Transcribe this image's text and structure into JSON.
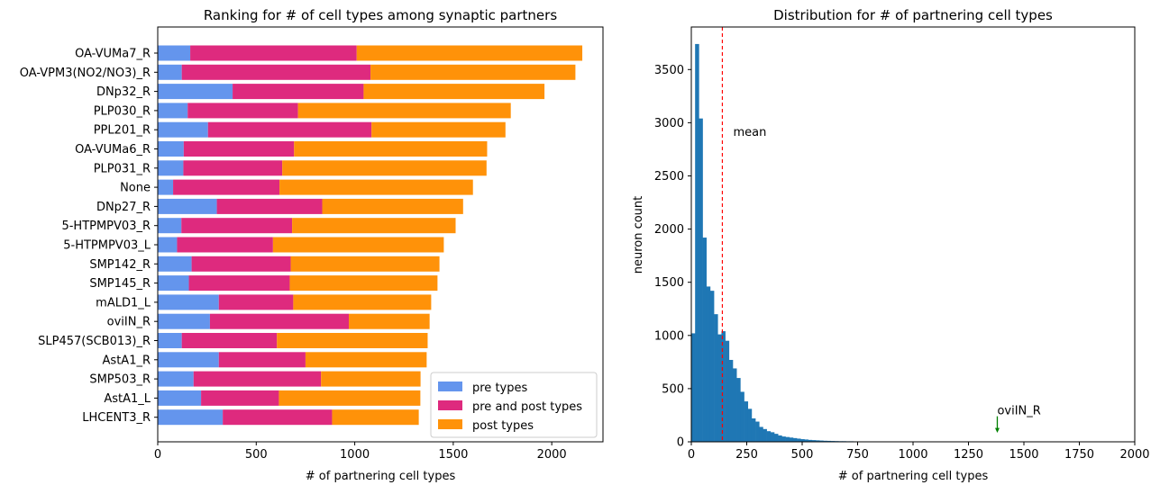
{
  "chart_data": [
    {
      "type": "bar",
      "orientation": "horizontal",
      "stacked": true,
      "title": "Ranking for # of cell types among synaptic partners",
      "xlabel": "# of partnering cell types",
      "ylabel": "",
      "xlim": [
        0,
        2260
      ],
      "xticks": [
        "0",
        "500",
        "1000",
        "1500",
        "2000"
      ],
      "legend_position": "lower-right",
      "grid": false,
      "categories": [
        "OA-VUMa7_R",
        "OA-VPM3(NO2/NO3)_R",
        "DNp32_R",
        "PLP030_R",
        "PPL201_R",
        "OA-VUMa6_R",
        "PLP031_R",
        "None",
        "DNp27_R",
        "5-HTPMPV03_R",
        "5-HTPMPV03_L",
        "SMP142_R",
        "SMP145_R",
        "mALD1_L",
        "oviIN_R",
        "SLP457(SCB013)_R",
        "AstA1_R",
        "SMP503_R",
        "AstA1_L",
        "LHCENT3_R"
      ],
      "series": [
        {
          "name": "pre types",
          "color": "#6495ed",
          "values": [
            165,
            122,
            380,
            152,
            255,
            132,
            130,
            78,
            300,
            120,
            98,
            172,
            158,
            310,
            265,
            122,
            310,
            182,
            220,
            330
          ]
        },
        {
          "name": "pre and post types",
          "color": "#de2a7e",
          "values": [
            845,
            958,
            665,
            560,
            830,
            560,
            502,
            540,
            535,
            562,
            487,
            503,
            512,
            378,
            705,
            483,
            440,
            647,
            395,
            555
          ]
        },
        {
          "name": "post types",
          "color": "#ff9209",
          "values": [
            1145,
            1040,
            918,
            1080,
            680,
            980,
            1037,
            982,
            715,
            830,
            867,
            755,
            750,
            700,
            410,
            765,
            615,
            505,
            718,
            440
          ]
        }
      ]
    },
    {
      "type": "bar",
      "subtype": "histogram",
      "title": "Distribution for # of partnering cell types",
      "xlabel": "# of partnering cell types",
      "ylabel": "neuron count",
      "xlim": [
        0,
        2000
      ],
      "ylim": [
        0,
        3900
      ],
      "xticks": [
        "0",
        "250",
        "500",
        "750",
        "1000",
        "1250",
        "1500",
        "1750",
        "2000"
      ],
      "yticks": [
        "0",
        "500",
        "1000",
        "1500",
        "2000",
        "2500",
        "3000",
        "3500"
      ],
      "bar_color": "#1f77b4",
      "bin_width": 17,
      "bin_start": 0,
      "values": [
        1020,
        3740,
        3040,
        1920,
        1460,
        1420,
        1200,
        1010,
        1040,
        950,
        770,
        690,
        600,
        470,
        380,
        310,
        220,
        190,
        140,
        120,
        100,
        90,
        75,
        60,
        50,
        45,
        40,
        35,
        30,
        25,
        22,
        18,
        16,
        14,
        12,
        10,
        9,
        8,
        7,
        6,
        6,
        5,
        5,
        4,
        4,
        3,
        3,
        3,
        2,
        2,
        2,
        2,
        2,
        2,
        2,
        1,
        1,
        1,
        1,
        1,
        1,
        1,
        1,
        1,
        1,
        1,
        1,
        1,
        1,
        1,
        1,
        1,
        1,
        1,
        1,
        1,
        1,
        1,
        1,
        1,
        1,
        1,
        1,
        1,
        1,
        1,
        1,
        1,
        1,
        1,
        1,
        1,
        1,
        1,
        1,
        1,
        1,
        1,
        1,
        1,
        1,
        1,
        1
      ],
      "mean_value": 140,
      "mean_label": "mean",
      "mean_color": "#ff0000",
      "annotation": {
        "text": "oviIN_R",
        "x": 1380,
        "color": "#008000"
      }
    }
  ]
}
